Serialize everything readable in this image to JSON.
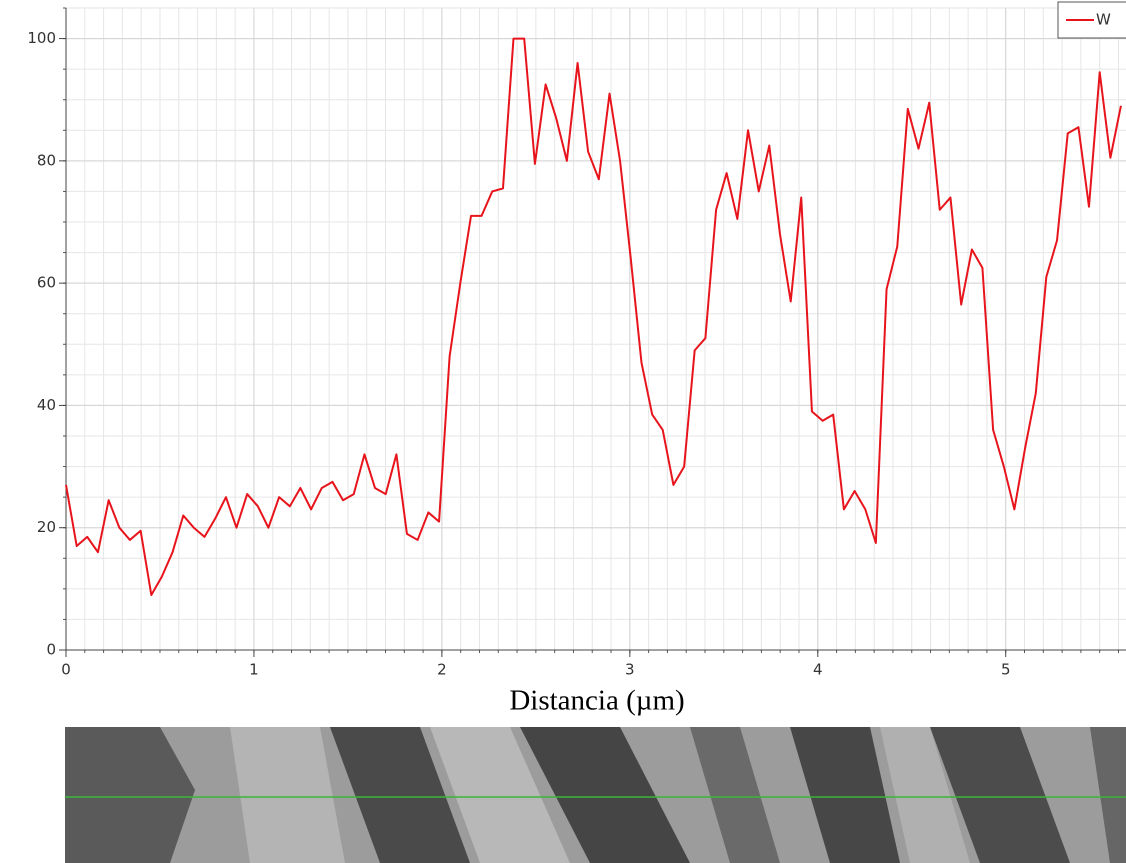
{
  "chart_data": {
    "type": "line",
    "x_label": "Distancia (µm)",
    "x": [
      0,
      0.057,
      0.113,
      0.17,
      0.227,
      0.284,
      0.34,
      0.397,
      0.454,
      0.51,
      0.567,
      0.624,
      0.68,
      0.737,
      0.794,
      0.851,
      0.907,
      0.964,
      1.021,
      1.077,
      1.134,
      1.191,
      1.247,
      1.304,
      1.361,
      1.418,
      1.474,
      1.531,
      1.588,
      1.644,
      1.701,
      1.758,
      1.814,
      1.871,
      1.928,
      1.985,
      2.041,
      2.098,
      2.155,
      2.211,
      2.268,
      2.325,
      2.381,
      2.438,
      2.495,
      2.552,
      2.608,
      2.665,
      2.722,
      2.778,
      2.835,
      2.892,
      2.948,
      3.005,
      3.062,
      3.119,
      3.175,
      3.232,
      3.289,
      3.345,
      3.402,
      3.459,
      3.515,
      3.572,
      3.629,
      3.686,
      3.742,
      3.799,
      3.856,
      3.912,
      3.969,
      4.026,
      4.082,
      4.139,
      4.196,
      4.253,
      4.309,
      4.366,
      4.423,
      4.479,
      4.536,
      4.593,
      4.649,
      4.706,
      4.763,
      4.82,
      4.876,
      4.933,
      4.99,
      5.046,
      5.103,
      5.16,
      5.216,
      5.273,
      5.33,
      5.387,
      5.443,
      5.5,
      5.557,
      5.613
    ],
    "series": [
      {
        "name": "W",
        "color": "#e8141c",
        "values": [
          27,
          17,
          18.5,
          16,
          24.5,
          20,
          18,
          19.5,
          9,
          12,
          16,
          22,
          20,
          18.5,
          21.5,
          25,
          20,
          25.5,
          23.5,
          20,
          25,
          23.5,
          26.5,
          23,
          26.5,
          27.5,
          24.5,
          25.5,
          32,
          26.5,
          25.5,
          32,
          19,
          18,
          22.5,
          21,
          48,
          60,
          71,
          71,
          75,
          75.5,
          100,
          100,
          79.5,
          92.5,
          87,
          80,
          96,
          81.5,
          77,
          91,
          80,
          64,
          47,
          38.5,
          36,
          27,
          30,
          49,
          51,
          72,
          78,
          70.5,
          85,
          75,
          82.5,
          68,
          57,
          74,
          39,
          37.5,
          38.5,
          23,
          26,
          23,
          17.5,
          59,
          66,
          88.5,
          82,
          89.5,
          72,
          74,
          56.5,
          65.5,
          62.5,
          36,
          30,
          23,
          33,
          42,
          61,
          67,
          84.5,
          85.5,
          72.5,
          94.5,
          80.5,
          89
        ]
      }
    ],
    "xlim": [
      0,
      5.64
    ],
    "xticks": [
      0,
      1,
      2,
      3,
      4,
      5
    ],
    "ylim": [
      0,
      105
    ],
    "yticks": [
      0,
      20,
      40,
      60,
      80,
      100
    ],
    "grid": true,
    "legend": "upper right"
  }
}
